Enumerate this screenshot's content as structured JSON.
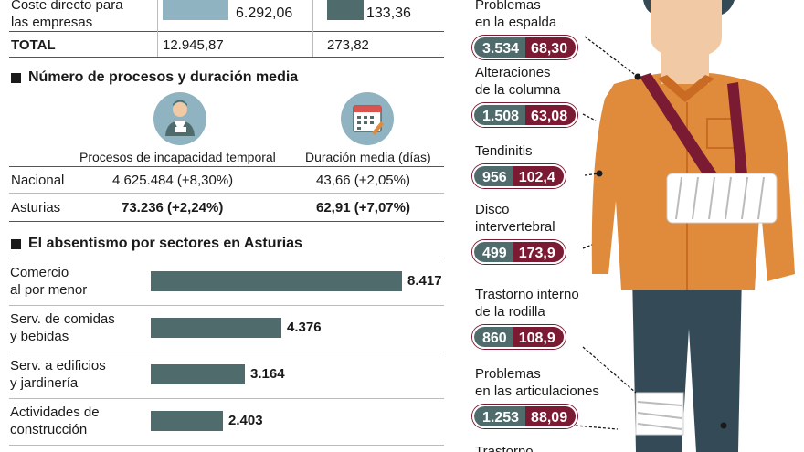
{
  "top_table": {
    "row_label": "Coste directo para las empresas",
    "row_label_line1": "Coste directo para",
    "row_label_line2": "las empresas",
    "row_val1": "6.292,06",
    "row_val2": "133,36",
    "row_bar1_fraction": 0.486,
    "row_bar2_fraction": 0.487,
    "total_label": "TOTAL",
    "total_val1": "12.945,87",
    "total_val2": "273,82"
  },
  "procesos": {
    "title": "Número de procesos y duración media",
    "col1_header": "Procesos de incapacidad temporal",
    "col2_header": "Duración media (días)",
    "rows": [
      {
        "label": "Nacional",
        "procesos": "4.625.484 (+8,30%)",
        "duracion": "43,66 (+2,05%)"
      },
      {
        "label": "Asturias",
        "procesos": "73.236 (+2,24%)",
        "duracion": "62,91 (+7,07%)"
      }
    ]
  },
  "chart_data": {
    "type": "bar",
    "title": "El absentismo por sectores en Asturias",
    "categories": [
      [
        "Comercio",
        "al por menor"
      ],
      [
        "Serv. de comidas",
        "y bebidas"
      ],
      [
        "Serv. a edificios",
        "y jardinería"
      ],
      [
        "Actividades de",
        "construcción"
      ]
    ],
    "values": [
      8417,
      4376,
      3164,
      2403
    ],
    "value_labels": [
      "8.417",
      "4.376",
      "3.164",
      "2.403"
    ],
    "orientation": "horizontal",
    "bar_color": "#4f6b6c"
  },
  "body_diagram": {
    "items": [
      {
        "label_lines": [
          "Problemas",
          "en la espalda"
        ],
        "a": "3.534",
        "b": "68,30"
      },
      {
        "label_lines": [
          "Alteraciones",
          "de la columna"
        ],
        "a": "1.508",
        "b": "63,08"
      },
      {
        "label_lines": [
          "Tendinitis"
        ],
        "a": "956",
        "b": "102,4"
      },
      {
        "label_lines": [
          "Disco",
          "intervertebral"
        ],
        "a": "499",
        "b": "173,9"
      },
      {
        "label_lines": [
          "Trastorno interno",
          "de la rodilla"
        ],
        "a": "860",
        "b": "108,9"
      },
      {
        "label_lines": [
          "Problemas",
          "en las articulaciones"
        ],
        "a": "1.253",
        "b": "88,09"
      },
      {
        "label_lines": [
          "Trastorno"
        ],
        "a": "",
        "b": ""
      }
    ],
    "colors": {
      "slate": "#4f6b6c",
      "wine": "#7a1a33",
      "shirt": "#e08a3c",
      "pants": "#344a57",
      "skin": "#f1c9a5"
    }
  },
  "icons": {
    "worker": "worker-icon",
    "calendar": "calendar-icon"
  }
}
